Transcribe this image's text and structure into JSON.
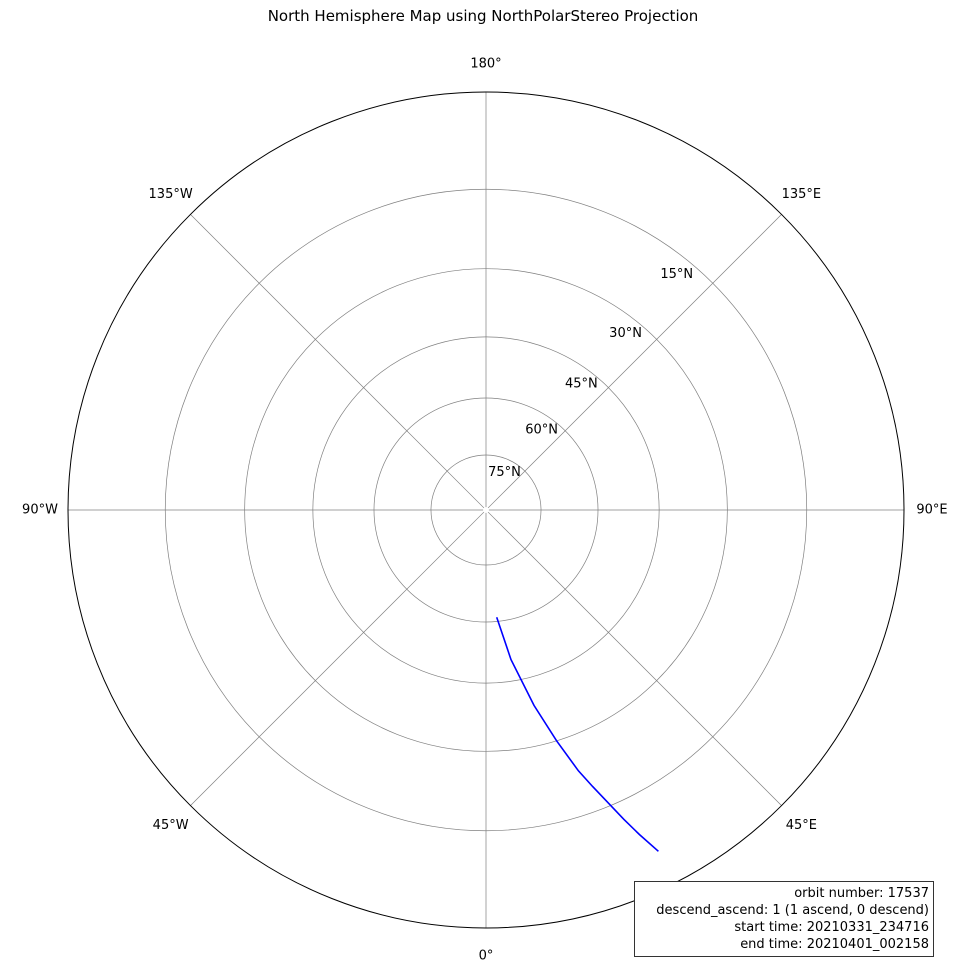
{
  "title": "North Hemisphere Map using NorthPolarStereo Projection",
  "map": {
    "projection": "NorthPolarStereo",
    "central_longitude": 0,
    "boundary_latitude": 0,
    "gridline_color": "#808080",
    "boundary_color": "#000000",
    "meridians": [
      {
        "lon": 180,
        "label": "180°"
      },
      {
        "lon": 135,
        "label": "135°E"
      },
      {
        "lon": 90,
        "label": "90°E"
      },
      {
        "lon": 45,
        "label": "45°E"
      },
      {
        "lon": 0,
        "label": "0°"
      },
      {
        "lon": -45,
        "label": "45°W"
      },
      {
        "lon": -90,
        "label": "90°W"
      },
      {
        "lon": -135,
        "label": "135°W"
      }
    ],
    "parallels": [
      {
        "lat": 15,
        "label": "15°N"
      },
      {
        "lat": 30,
        "label": "30°N"
      },
      {
        "lat": 45,
        "label": "45°N"
      },
      {
        "lat": 60,
        "label": "60°N"
      },
      {
        "lat": 75,
        "label": "75°N"
      }
    ],
    "track": {
      "color": "#0000ff",
      "points": [
        {
          "lon": 5.7,
          "lat": 61.1
        },
        {
          "lon": 9.5,
          "lat": 50.1
        },
        {
          "lon": 13.8,
          "lat": 38.6
        },
        {
          "lon": 17.0,
          "lat": 30.0
        },
        {
          "lon": 19.5,
          "lat": 23.0
        },
        {
          "lon": 21.1,
          "lat": 19.3
        },
        {
          "lon": 24.0,
          "lat": 12.0
        },
        {
          "lon": 25.3,
          "lat": 8.7
        },
        {
          "lon": 26.8,
          "lat": 5.1
        }
      ]
    }
  },
  "info_box": {
    "lines": [
      "orbit number: 17537",
      "descend_ascend: 1 (1 ascend, 0 descend)",
      "start time: 20210331_234716",
      "end time: 20210401_002158"
    ]
  }
}
